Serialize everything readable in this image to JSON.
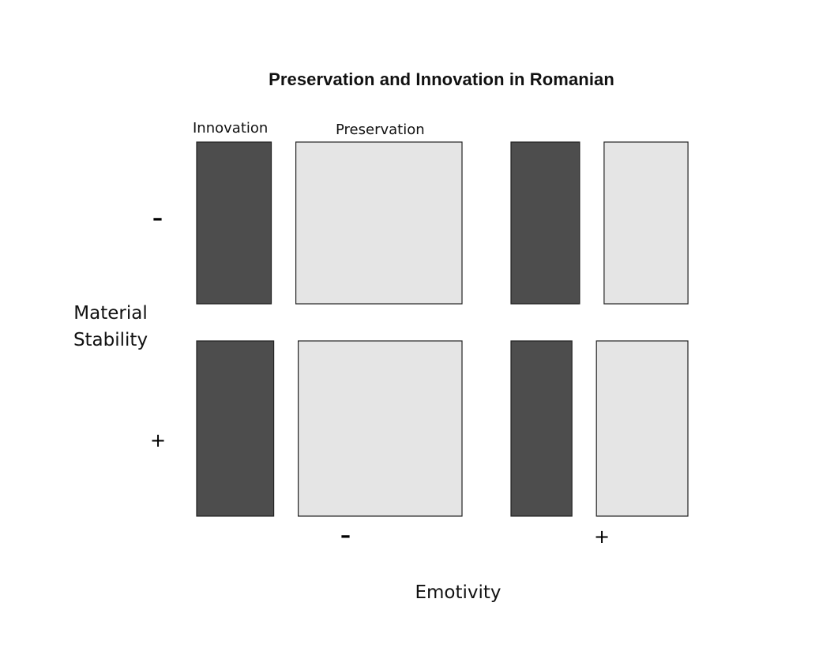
{
  "chart_data": {
    "type": "mosaic",
    "title": "Preservation and Innovation in Romanian",
    "xlabel": "Emotivity",
    "ylabel": "Material Stability",
    "x_categories": [
      "–",
      "+"
    ],
    "y_categories": [
      "–",
      "+"
    ],
    "fill_categories": [
      "Innovation",
      "Preservation"
    ],
    "colors": {
      "Innovation": "#4d4d4d",
      "Preservation": "#e5e5e5",
      "stroke": "#222222"
    },
    "cells": [
      {
        "emotivity": "–",
        "material_stability": "–",
        "innovation_share": 0.31,
        "preservation_share": 0.69
      },
      {
        "emotivity": "–",
        "material_stability": "+",
        "innovation_share": 0.32,
        "preservation_share": 0.68
      },
      {
        "emotivity": "+",
        "material_stability": "–",
        "innovation_share": 0.45,
        "preservation_share": 0.55
      },
      {
        "emotivity": "+",
        "material_stability": "+",
        "innovation_share": 0.4,
        "preservation_share": 0.6
      }
    ]
  }
}
